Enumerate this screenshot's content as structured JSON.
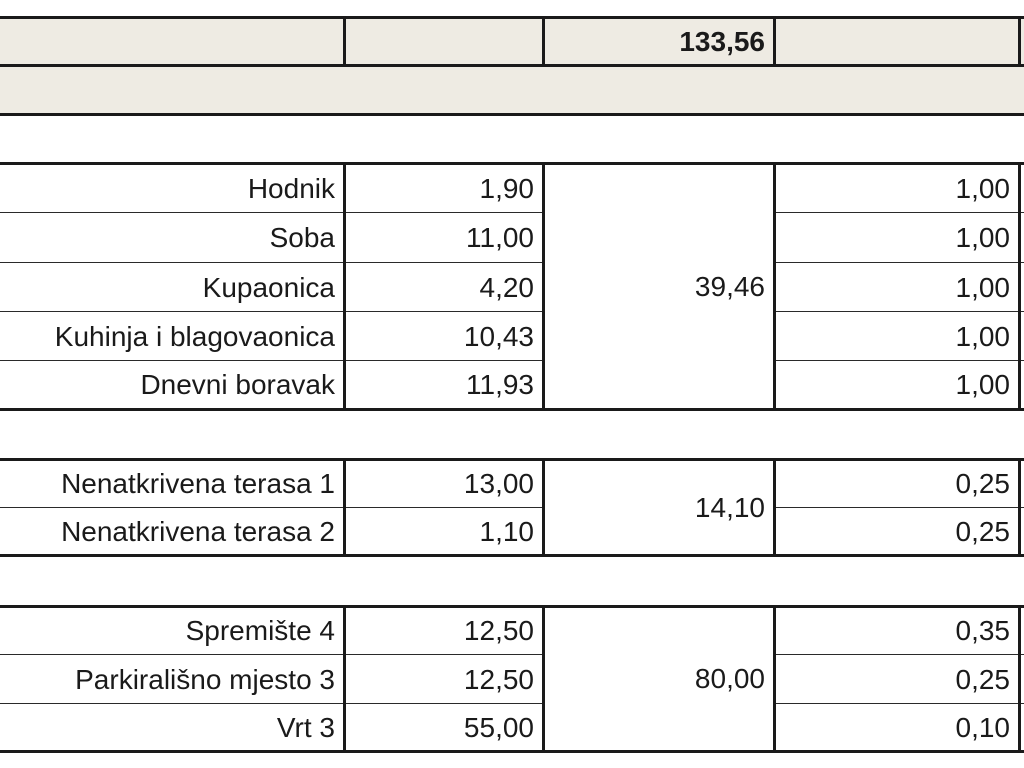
{
  "summary": {
    "total": "133,56"
  },
  "groups": [
    {
      "subtotal": "39,46",
      "rows": [
        {
          "name": "Hodnik",
          "area": "1,90",
          "coef": "1,00"
        },
        {
          "name": "Soba",
          "area": "11,00",
          "coef": "1,00"
        },
        {
          "name": "Kupaonica",
          "area": "4,20",
          "coef": "1,00"
        },
        {
          "name": "Kuhinja i blagovaonica",
          "area": "10,43",
          "coef": "1,00"
        },
        {
          "name": "Dnevni boravak",
          "area": "11,93",
          "coef": "1,00"
        }
      ]
    },
    {
      "subtotal": "14,10",
      "rows": [
        {
          "name": "Nenatkrivena terasa 1",
          "area": "13,00",
          "coef": "0,25"
        },
        {
          "name": "Nenatkrivena terasa 2",
          "area": "1,10",
          "coef": "0,25"
        }
      ]
    },
    {
      "subtotal": "80,00",
      "rows": [
        {
          "name": "Spremište 4",
          "area": "12,50",
          "coef": "0,35"
        },
        {
          "name": "Parkirališno mjesto 3",
          "area": "12,50",
          "coef": "0,25"
        },
        {
          "name": "Vrt 3",
          "area": "55,00",
          "coef": "0,10"
        }
      ]
    }
  ],
  "colors": {
    "band": "#eeebe3",
    "grid": "#1a1a1a"
  }
}
